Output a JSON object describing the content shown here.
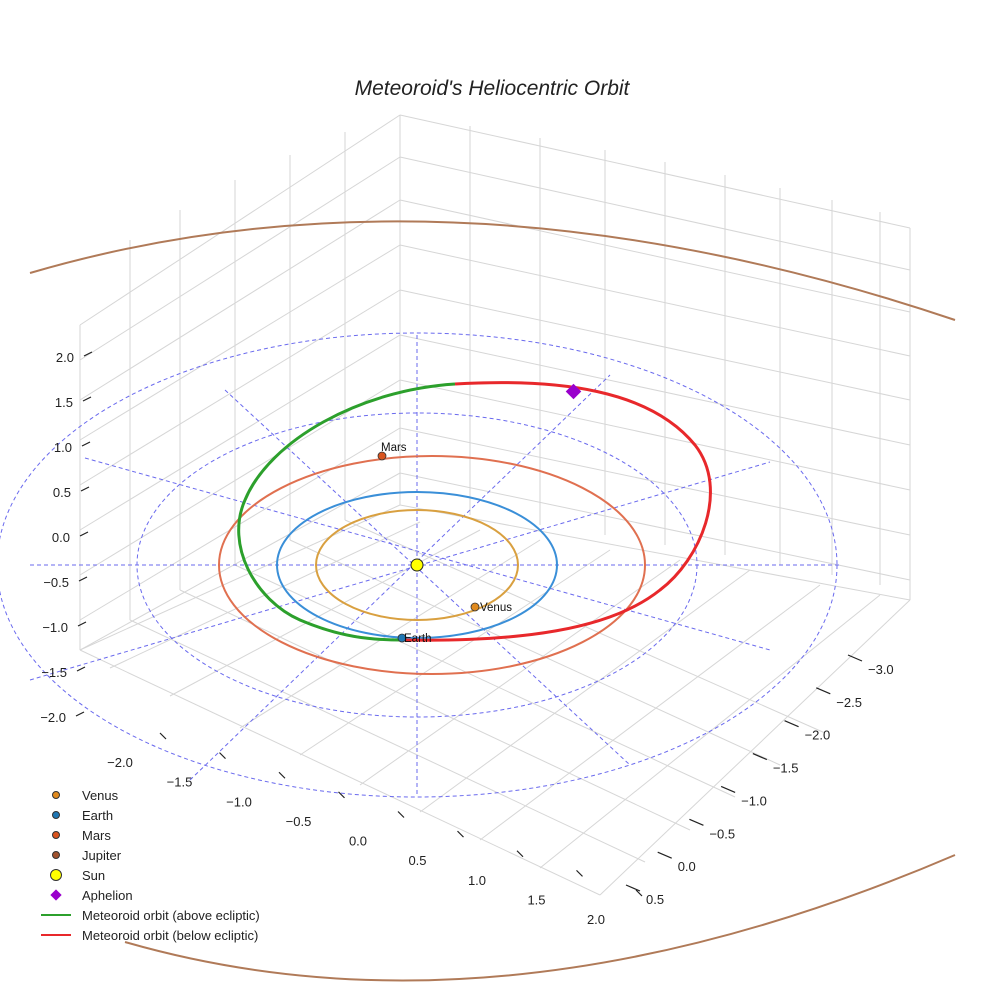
{
  "chart_data": {
    "type": "3d-orbit",
    "title": "Meteoroid's Heliocentric Orbit",
    "axes": {
      "x": {
        "label": "",
        "ticks": [
          -2.0,
          -1.5,
          -1.0,
          -0.5,
          0.0,
          0.5,
          1.0,
          1.5,
          2.0
        ],
        "tick_labels": [
          "−2.0",
          "−1.5",
          "−1.0",
          "−0.5",
          "0.0",
          "0.5",
          "1.0",
          "1.5",
          "2.0"
        ]
      },
      "y": {
        "label": "",
        "ticks": [
          -3.0,
          -2.5,
          -2.0,
          -1.5,
          -1.0,
          -0.5,
          0.0,
          0.5
        ],
        "tick_labels": [
          "−3.0",
          "−2.5",
          "−2.0",
          "−1.5",
          "−1.0",
          "−0.5",
          "0.0",
          "0.5"
        ]
      },
      "z": {
        "label": "",
        "ticks": [
          -2.0,
          -1.5,
          -1.0,
          -0.5,
          0.0,
          0.5,
          1.0,
          1.5,
          2.0
        ],
        "tick_labels": [
          "−2.0",
          "−1.5",
          "−1.0",
          "−0.5",
          "0.0",
          "0.5",
          "1.0",
          "1.5",
          "2.0"
        ]
      }
    },
    "planets": [
      {
        "name": "Venus",
        "semi_major_au": 0.72,
        "color": "#d9a040",
        "marker_color": "#e08a1e",
        "position_label": "Venus"
      },
      {
        "name": "Earth",
        "semi_major_au": 1.0,
        "color": "#3a8fd8",
        "marker_color": "#1f77b4",
        "position_label": "Earth"
      },
      {
        "name": "Mars",
        "semi_major_au": 1.52,
        "color": "#e07050",
        "marker_color": "#d9541e",
        "position_label": "Mars"
      },
      {
        "name": "Jupiter",
        "semi_major_au": 5.2,
        "color": "#b07a58",
        "marker_color": "#a0522d",
        "position_label": ""
      }
    ],
    "sun": {
      "name": "Sun",
      "color": "#ffff00"
    },
    "aphelion": {
      "name": "Aphelion",
      "color": "#9900cc"
    },
    "meteoroid_orbit": {
      "above_label": "Meteoroid orbit (above ecliptic)",
      "above_color": "#2ca02c",
      "below_label": "Meteoroid orbit (below ecliptic)",
      "below_color": "#e8282b"
    },
    "reference_circles_au": [
      1.5,
      2.0
    ],
    "grid": true
  },
  "legend": [
    {
      "label": "Venus",
      "symbol": "dot",
      "color": "#e08a1e"
    },
    {
      "label": "Earth",
      "symbol": "dot",
      "color": "#1f77b4"
    },
    {
      "label": "Mars",
      "symbol": "dot",
      "color": "#d9541e"
    },
    {
      "label": "Jupiter",
      "symbol": "dot",
      "color": "#a0522d"
    },
    {
      "label": "Sun",
      "symbol": "bigdot",
      "color": "#ffff00"
    },
    {
      "label": "Aphelion",
      "symbol": "diamond",
      "color": "#9900cc"
    },
    {
      "label": "Meteoroid orbit (above ecliptic)",
      "symbol": "line",
      "color": "#2ca02c"
    },
    {
      "label": "Meteoroid orbit (below ecliptic)",
      "symbol": "line",
      "color": "#e8282b"
    }
  ]
}
